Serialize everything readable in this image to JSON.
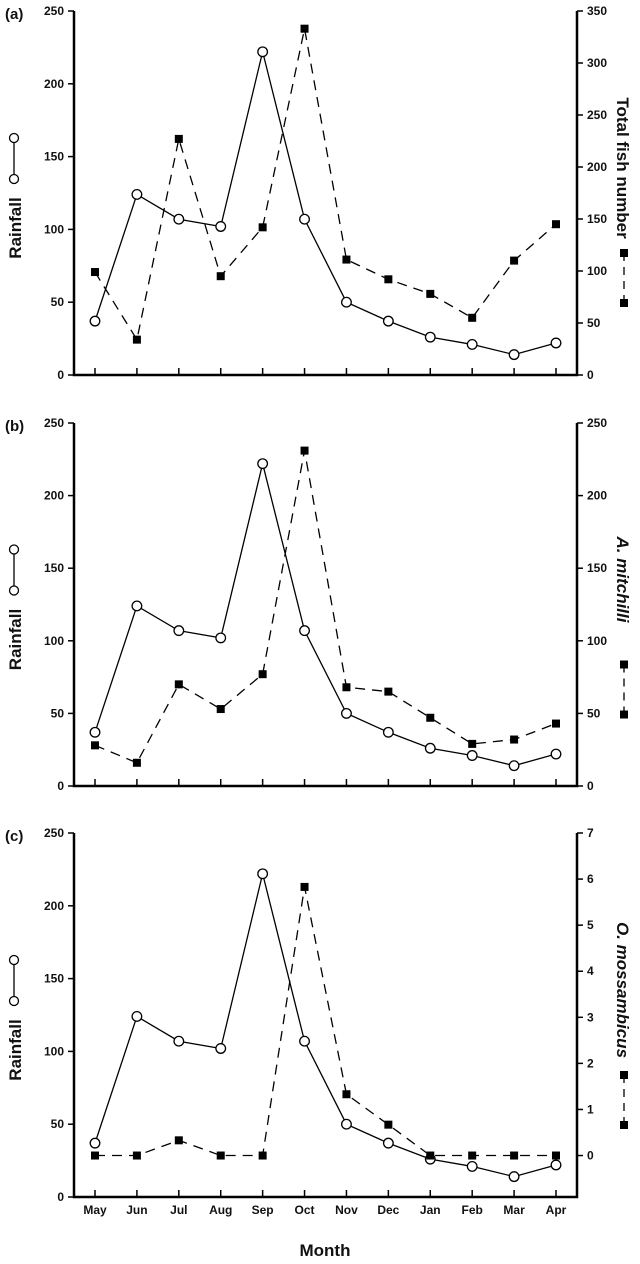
{
  "figure": {
    "xlabel": "Month",
    "colors": {
      "lines": "#000000",
      "background": "#ffffff"
    }
  },
  "chart_data": [
    {
      "type": "line",
      "panel_label": "(a)",
      "categories": [
        "May",
        "Jun",
        "Jul",
        "Aug",
        "Sep",
        "Oct",
        "Nov",
        "Dec",
        "Jan",
        "Feb",
        "Mar",
        "Apr"
      ],
      "ylabel_left": "Rainfall",
      "ylabel_right": "Total fish number",
      "ylim_left": [
        0,
        250
      ],
      "ylim_right": [
        0,
        350
      ],
      "yticks_left": [
        0,
        50,
        100,
        150,
        200,
        250
      ],
      "yticks_right": [
        0,
        50,
        100,
        150,
        200,
        250,
        300,
        350
      ],
      "grid": false,
      "series": [
        {
          "axis": "left",
          "marker": "open-circle",
          "line": "solid",
          "values": [
            37,
            124,
            107,
            102,
            222,
            107,
            50,
            37,
            26,
            21,
            14,
            22
          ]
        },
        {
          "axis": "right",
          "marker": "filled-square",
          "line": "dashed",
          "values": [
            99,
            34,
            227,
            95,
            142,
            333,
            111,
            92,
            78,
            55,
            110,
            145
          ]
        }
      ]
    },
    {
      "type": "line",
      "panel_label": "(b)",
      "categories": [
        "May",
        "Jun",
        "Jul",
        "Aug",
        "Sep",
        "Oct",
        "Nov",
        "Dec",
        "Jan",
        "Feb",
        "Mar",
        "Apr"
      ],
      "ylabel_left": "Rainfall",
      "ylabel_right": "A. mitchilli",
      "ylim_left": [
        0,
        250
      ],
      "ylim_right": [
        0,
        250
      ],
      "yticks_left": [
        0,
        50,
        100,
        150,
        200,
        250
      ],
      "yticks_right": [
        0,
        50,
        100,
        150,
        200,
        250
      ],
      "grid": false,
      "series": [
        {
          "axis": "left",
          "marker": "open-circle",
          "line": "solid",
          "values": [
            37,
            124,
            107,
            102,
            222,
            107,
            50,
            37,
            26,
            21,
            14,
            22
          ]
        },
        {
          "axis": "right",
          "marker": "filled-square",
          "line": "dashed",
          "values": [
            28,
            16,
            70,
            53,
            77,
            231,
            68,
            65,
            47,
            29,
            32,
            43
          ]
        }
      ]
    },
    {
      "type": "line",
      "panel_label": "(c)",
      "categories": [
        "May",
        "Jun",
        "Jul",
        "Aug",
        "Sep",
        "Oct",
        "Nov",
        "Dec",
        "Jan",
        "Feb",
        "Mar",
        "Apr"
      ],
      "show_xticklabels": true,
      "ylabel_left": "Rainfall",
      "ylabel_right": "O. mossambicus",
      "ylim_left": [
        0,
        250
      ],
      "ylim_right": [
        -0.9,
        7
      ],
      "yticks_left": [
        0,
        50,
        100,
        150,
        200,
        250
      ],
      "yticks_right": [
        0,
        1,
        2,
        3,
        4,
        5,
        6,
        7
      ],
      "grid": false,
      "series": [
        {
          "axis": "left",
          "marker": "open-circle",
          "line": "solid",
          "values": [
            37,
            124,
            107,
            102,
            222,
            107,
            50,
            37,
            26,
            21,
            14,
            22
          ]
        },
        {
          "axis": "right",
          "marker": "filled-square",
          "line": "dashed",
          "values": [
            0,
            0,
            0.33,
            0,
            0,
            5.83,
            1.33,
            0.67,
            0,
            0,
            0,
            0
          ]
        }
      ]
    }
  ]
}
